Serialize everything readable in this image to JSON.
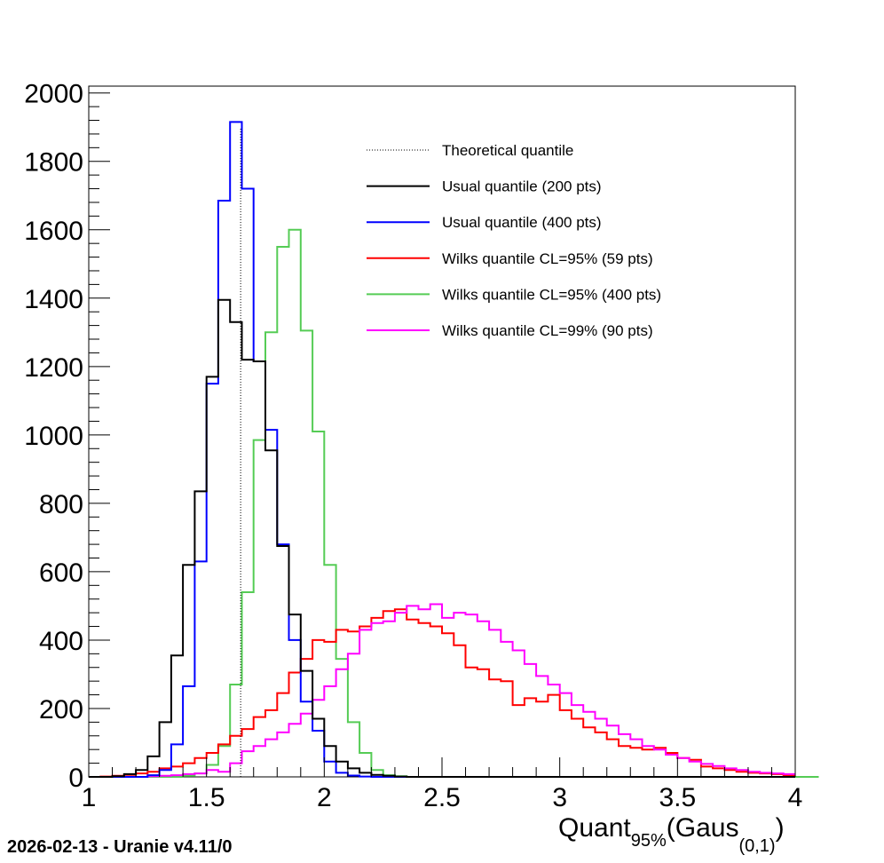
{
  "footer": "2026-02-13 - Uranie v4.11/0",
  "chart_data": {
    "type": "histogram",
    "xlabel": {
      "main": "Quant",
      "sub1": "95%",
      "mid": "(Gaus",
      "sub2": "(0,1)",
      "end": ")"
    },
    "ylabel": "",
    "xlim": [
      1,
      4
    ],
    "ylim": [
      0,
      2020
    ],
    "xticks": [
      1,
      1.5,
      2,
      2.5,
      3,
      3.5,
      4
    ],
    "xtick_labels": [
      "1",
      "1.5",
      "2",
      "2.5",
      "3",
      "3.5",
      "4"
    ],
    "yticks": [
      0,
      200,
      400,
      600,
      800,
      1000,
      1200,
      1400,
      1600,
      1800,
      2000
    ],
    "ytick_labels": [
      "0",
      "200",
      "400",
      "600",
      "800",
      "1000",
      "1200",
      "1400",
      "1600",
      "1800",
      "2000"
    ],
    "bin_width": 0.05,
    "x_start": 1,
    "legend_position": "top-right",
    "theoretical_quantile": {
      "name": "Theoretical quantile",
      "x": 1.645,
      "y": 1900,
      "color": "#000000"
    },
    "series": [
      {
        "name": "Usual quantile (200 pts)",
        "color": "#000000",
        "values": [
          0,
          0,
          2,
          8,
          20,
          60,
          160,
          355,
          620,
          835,
          1170,
          1395,
          1330,
          1220,
          1215,
          955,
          675,
          475,
          310,
          170,
          90,
          45,
          25,
          12,
          6,
          3,
          1,
          0,
          0,
          0,
          0,
          0,
          0,
          0,
          0,
          0,
          0,
          0,
          0,
          0,
          0,
          0,
          0,
          0,
          0,
          0,
          0,
          0,
          0,
          0,
          0,
          0,
          0,
          0,
          0,
          0,
          0,
          0,
          0,
          0
        ]
      },
      {
        "name": "Usual quantile (400 pts)",
        "color": "#0000ff",
        "values": [
          0,
          0,
          0,
          0,
          0,
          5,
          20,
          95,
          265,
          630,
          1150,
          1685,
          1915,
          1720,
          1215,
          1015,
          680,
          400,
          220,
          135,
          45,
          12,
          4,
          1,
          0,
          0,
          0,
          0,
          0,
          0,
          0,
          0,
          0,
          0,
          0,
          0,
          0,
          0,
          0,
          0,
          0,
          0,
          0,
          0,
          0,
          0,
          0,
          0,
          0,
          0,
          0,
          0,
          0,
          0,
          0,
          0,
          0,
          0,
          0,
          0
        ]
      },
      {
        "name": "Wilks quantile CL=95% (59 pts)",
        "color": "#ff0000",
        "values": [
          0,
          1,
          3,
          6,
          10,
          15,
          25,
          30,
          40,
          55,
          70,
          95,
          120,
          140,
          175,
          195,
          245,
          305,
          345,
          400,
          395,
          430,
          425,
          440,
          465,
          485,
          490,
          460,
          450,
          440,
          420,
          385,
          320,
          315,
          285,
          280,
          210,
          230,
          220,
          240,
          195,
          170,
          145,
          130,
          110,
          90,
          85,
          80,
          85,
          70,
          55,
          50,
          30,
          25,
          20,
          15,
          12,
          10,
          8,
          5
        ]
      },
      {
        "name": "Wilks quantile CL=95% (400 pts)",
        "color": "#55cc55",
        "values": [
          0,
          0,
          0,
          0,
          0,
          0,
          0,
          0,
          3,
          10,
          35,
          90,
          270,
          540,
          985,
          1300,
          1550,
          1600,
          1305,
          1010,
          620,
          345,
          160,
          70,
          20,
          5,
          2,
          0,
          0,
          0,
          0,
          0,
          0,
          0,
          0,
          0,
          0,
          0,
          0,
          0,
          0,
          0,
          0,
          0,
          0,
          0,
          0,
          0,
          0,
          0,
          0,
          0,
          0,
          0,
          0,
          0,
          0,
          0,
          0,
          0,
          0,
          0
        ]
      },
      {
        "name": "Wilks quantile CL=99% (90 pts)",
        "color": "#ff00ff",
        "values": [
          0,
          0,
          0,
          0,
          0,
          2,
          3,
          5,
          8,
          10,
          20,
          15,
          40,
          75,
          90,
          110,
          130,
          155,
          185,
          225,
          265,
          315,
          360,
          430,
          450,
          455,
          480,
          500,
          490,
          505,
          465,
          480,
          475,
          455,
          430,
          395,
          370,
          330,
          295,
          270,
          245,
          210,
          190,
          170,
          150,
          125,
          110,
          90,
          80,
          65,
          55,
          45,
          38,
          32,
          25,
          20,
          15,
          12,
          10,
          8
        ]
      }
    ]
  }
}
